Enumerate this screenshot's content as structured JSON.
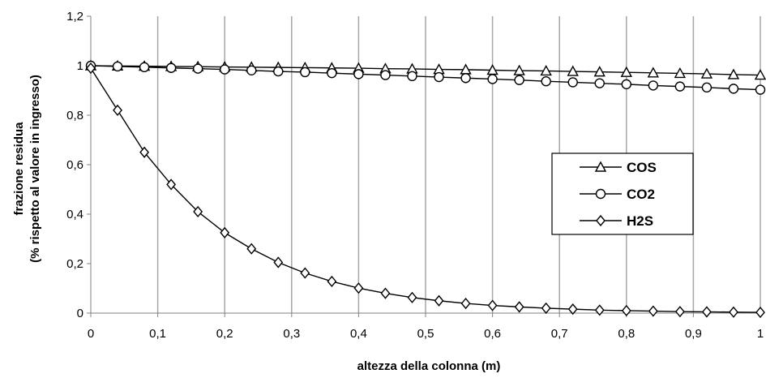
{
  "chart_data": {
    "type": "line",
    "xlabel": "altezza della colonna (m)",
    "ylabel_lines": [
      "frazione residua",
      "(% rispetto al valore in ingresso)"
    ],
    "xlim": [
      0,
      1
    ],
    "ylim": [
      0,
      1.2
    ],
    "xticks": [
      0,
      0.1,
      0.2,
      0.3,
      0.4,
      0.5,
      0.6,
      0.7,
      0.8,
      0.9,
      1
    ],
    "xtick_labels": [
      "0",
      "0,1",
      "0,2",
      "0,3",
      "0,4",
      "0,5",
      "0,6",
      "0,7",
      "0,8",
      "0,9",
      "1"
    ],
    "yticks": [
      0,
      0.2,
      0.4,
      0.6,
      0.8,
      1,
      1.2
    ],
    "ytick_labels": [
      "0",
      "0,2",
      "0,4",
      "0,6",
      "0,8",
      "1",
      "1,2"
    ],
    "grid": "vertical",
    "legend_position": "right",
    "x": [
      0,
      0.04,
      0.08,
      0.12,
      0.16,
      0.2,
      0.24,
      0.28,
      0.32,
      0.36,
      0.4,
      0.44,
      0.48,
      0.52,
      0.56,
      0.6,
      0.64,
      0.68,
      0.72,
      0.76,
      0.8,
      0.84,
      0.88,
      0.92,
      0.96,
      1
    ],
    "series": [
      {
        "name": "COS",
        "marker": "triangle",
        "values": [
          1.0,
          0.999,
          0.998,
          0.997,
          0.996,
          0.995,
          0.994,
          0.993,
          0.992,
          0.991,
          0.99,
          0.988,
          0.987,
          0.985,
          0.984,
          0.982,
          0.98,
          0.979,
          0.977,
          0.975,
          0.973,
          0.971,
          0.969,
          0.967,
          0.964,
          0.962
        ]
      },
      {
        "name": "CO2",
        "marker": "circle",
        "values": [
          1.0,
          0.997,
          0.994,
          0.991,
          0.988,
          0.985,
          0.981,
          0.977,
          0.974,
          0.97,
          0.966,
          0.962,
          0.958,
          0.954,
          0.95,
          0.946,
          0.942,
          0.937,
          0.933,
          0.929,
          0.925,
          0.92,
          0.916,
          0.912,
          0.907,
          0.903
        ]
      },
      {
        "name": "H2S",
        "marker": "diamond",
        "values": [
          0.99,
          0.82,
          0.65,
          0.52,
          0.41,
          0.325,
          0.26,
          0.205,
          0.162,
          0.128,
          0.101,
          0.08,
          0.063,
          0.05,
          0.039,
          0.031,
          0.025,
          0.02,
          0.016,
          0.012,
          0.01,
          0.008,
          0.006,
          0.005,
          0.004,
          0.003
        ]
      }
    ]
  },
  "colors": {
    "line": "#000000",
    "grid": "#a6a6a6",
    "axis": "#808080",
    "background": "#ffffff"
  }
}
